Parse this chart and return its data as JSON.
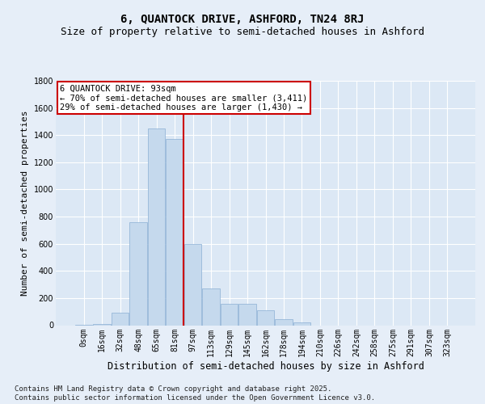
{
  "title": "6, QUANTOCK DRIVE, ASHFORD, TN24 8RJ",
  "subtitle": "Size of property relative to semi-detached houses in Ashford",
  "xlabel": "Distribution of semi-detached houses by size in Ashford",
  "ylabel": "Number of semi-detached properties",
  "categories": [
    "0sqm",
    "16sqm",
    "32sqm",
    "48sqm",
    "65sqm",
    "81sqm",
    "97sqm",
    "113sqm",
    "129sqm",
    "145sqm",
    "162sqm",
    "178sqm",
    "194sqm",
    "210sqm",
    "226sqm",
    "242sqm",
    "258sqm",
    "275sqm",
    "291sqm",
    "307sqm",
    "323sqm"
  ],
  "values": [
    2,
    10,
    90,
    760,
    1450,
    1370,
    600,
    270,
    155,
    155,
    110,
    45,
    20,
    0,
    0,
    0,
    0,
    0,
    0,
    0,
    0
  ],
  "bar_color": "#c5d9ed",
  "bar_edge_color": "#8aafd4",
  "vline_color": "#cc0000",
  "vline_pos": 5.5,
  "annotation_text": "6 QUANTOCK DRIVE: 93sqm\n← 70% of semi-detached houses are smaller (3,411)\n29% of semi-detached houses are larger (1,430) →",
  "annotation_box_facecolor": "#ffffff",
  "annotation_box_edgecolor": "#cc0000",
  "background_color": "#e6eef8",
  "plot_bg_color": "#dce8f5",
  "ylim": [
    0,
    1800
  ],
  "yticks": [
    0,
    200,
    400,
    600,
    800,
    1000,
    1200,
    1400,
    1600,
    1800
  ],
  "footer": "Contains HM Land Registry data © Crown copyright and database right 2025.\nContains public sector information licensed under the Open Government Licence v3.0.",
  "title_fontsize": 10,
  "subtitle_fontsize": 9,
  "ylabel_fontsize": 8,
  "xlabel_fontsize": 8.5,
  "tick_fontsize": 7,
  "annotation_fontsize": 7.5,
  "footer_fontsize": 6.5
}
